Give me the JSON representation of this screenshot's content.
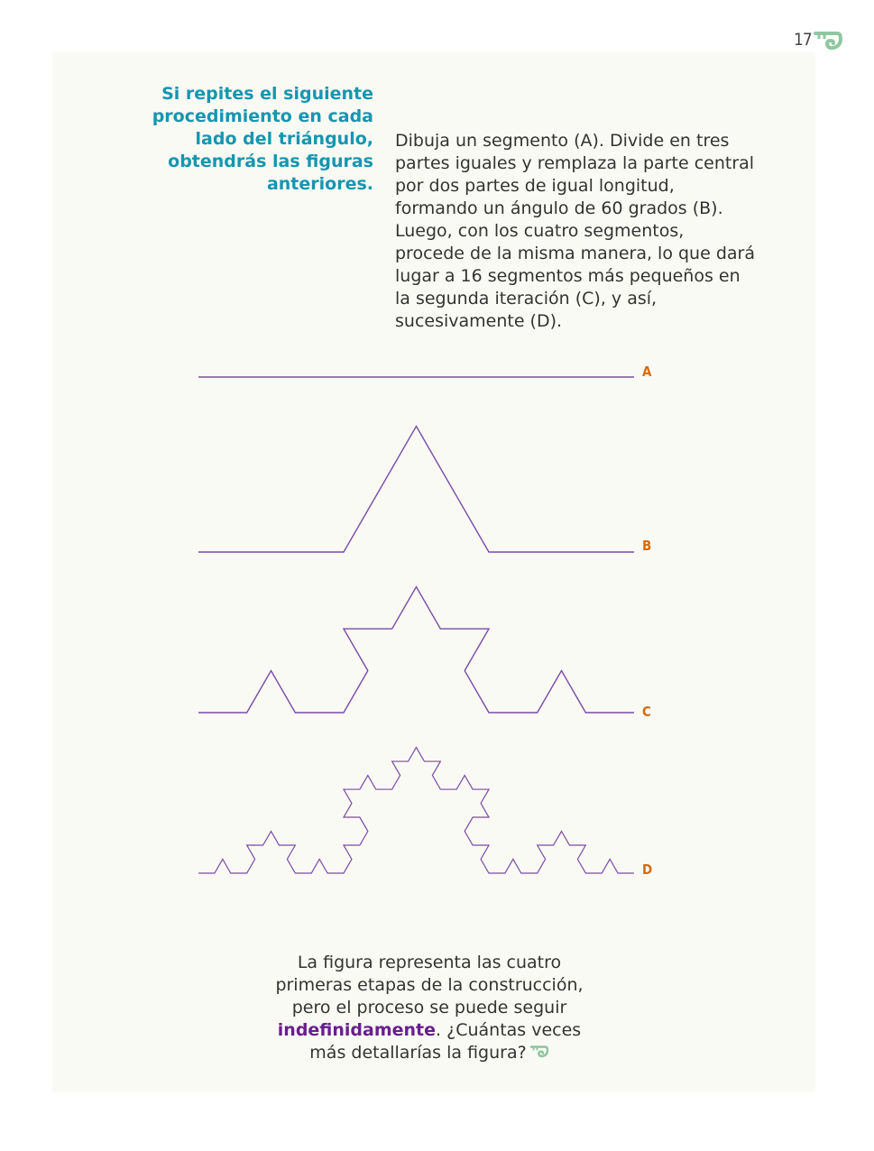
{
  "page": {
    "number": "17"
  },
  "aside": {
    "text": "Si repites el siguiente procedimiento en cada lado del triángulo, obtendrás las figuras anteriores."
  },
  "body": {
    "text": "Dibuja un segmento (A). Divide en tres partes iguales y remplaza la parte central por dos partes de igual longitud, formando un ángulo de 60 grados (B). Luego, con los cuatro segmentos, procede de la misma manera, lo que dará lugar a 16 segmentos más pequeños en la segunda iteración (C), y así, sucesivamente (D)."
  },
  "figures": {
    "line_color": "#7b4aa8",
    "label_color": "#d66b0d",
    "labels": [
      "A",
      "B",
      "C",
      "D"
    ],
    "iterations": [
      0,
      1,
      2,
      3
    ]
  },
  "closing": {
    "part1": "La figura representa las cuatro primeras etapas de la construcción, pero el proceso se puede seguir ",
    "emphasis": "indefinidamente",
    "part2": ". ¿Cuántas veces más detallarías la figura?"
  },
  "icons": {
    "ornament": "green-spiral-ornament-icon",
    "ornament_color": "#8fc8a0"
  }
}
